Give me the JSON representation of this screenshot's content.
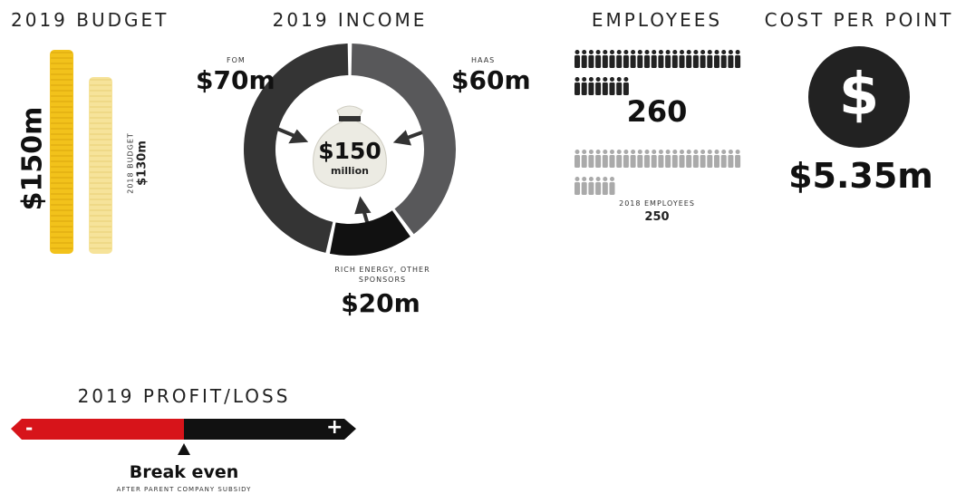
{
  "budget": {
    "title": "2019 BUDGET",
    "values": [
      150,
      130
    ],
    "value_labels": [
      "$150m",
      "$130m"
    ],
    "prev_label": "2018 BUDGET",
    "colors": [
      "#f2c21b",
      "#f6e39a"
    ]
  },
  "income": {
    "title": "2019 INCOME",
    "total_label": "$150",
    "total_unit": "million",
    "segments": [
      {
        "name": "HAAS",
        "value": 60,
        "value_label": "$60m",
        "color": "#58585a"
      },
      {
        "name": "RICH ENERGY, OTHER SPONSORS",
        "value": 20,
        "value_label": "$20m",
        "color": "#111111"
      },
      {
        "name": "FOM",
        "value": 70,
        "value_label": "$70m",
        "color": "#343434"
      }
    ]
  },
  "employees": {
    "title": "EMPLOYEES",
    "count": 260,
    "prev_label": "2018 EMPLOYEES",
    "prev_count": 250
  },
  "cost": {
    "title": "COST PER POINT",
    "icon": "$",
    "value_label": "$5.35m"
  },
  "profit": {
    "title": "2019 PROFIT/LOSS",
    "minus": "-",
    "plus": "+",
    "result": "Break even",
    "note": "AFTER PARENT COMPANY SUBSIDY"
  }
}
